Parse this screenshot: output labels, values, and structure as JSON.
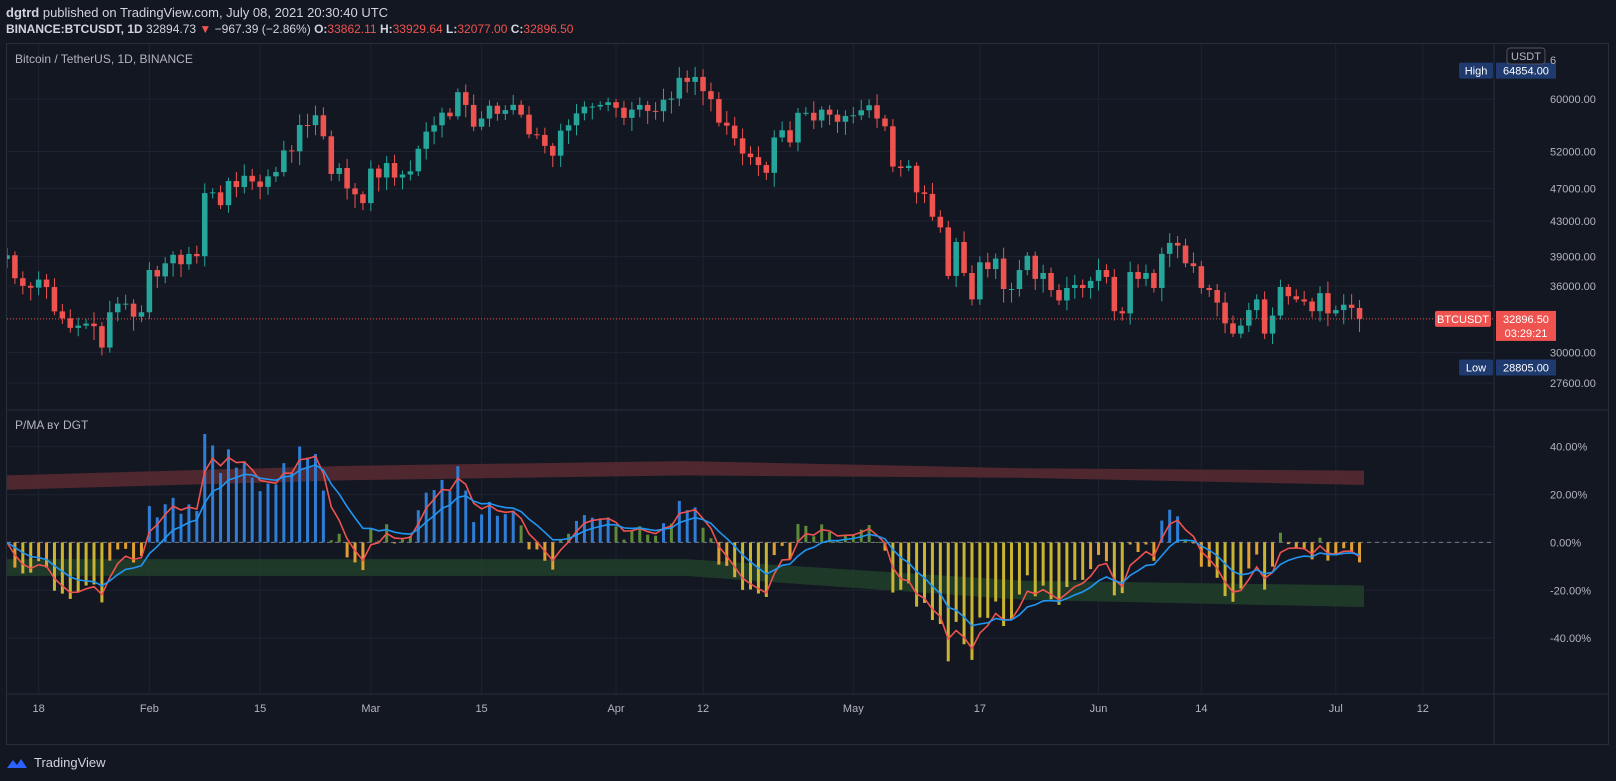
{
  "header": {
    "publisher": "dgtrd",
    "published_text": "published on TradingView.com, July 08, 2021 20:30:40 UTC",
    "symbol_line": "BINANCE:BTCUSDT, 1D",
    "last": "32894.73",
    "change_arrow": "▼",
    "change": "−967.39 (−2.86%)",
    "o_label": "O:",
    "o": "33862.11",
    "h_label": "H:",
    "h": "33929.64",
    "l_label": "L:",
    "l": "32077.00",
    "c_label": "C:",
    "c": "32896.50"
  },
  "colors": {
    "background": "#131722",
    "grid": "#1f2330",
    "up": "#26a69a",
    "down": "#ef5350",
    "ma_red": "#ef5350",
    "ma_blue": "#2196f3",
    "hist_blue": "#2f7dd4",
    "hist_green": "#5f8a3a",
    "hist_yellow": "#c9b531",
    "hist_orange": "#e0a030",
    "band_red": "#5a2a30",
    "band_green": "#22402a"
  },
  "footer": {
    "logo_icon": "tradingview-logo-icon",
    "brand": "TradingView"
  },
  "chart_data": [
    {
      "type": "candlestick",
      "title": "Bitcoin / TetherUS, 1D, BINANCE",
      "currency_badge": "USDT",
      "price_scale": "log",
      "y_ticks": [
        "60000.00",
        "52000.00",
        "47000.00",
        "43000.00",
        "39000.00",
        "36000.00",
        "30000.00",
        "27600.00"
      ],
      "y_top_partial_label": "6",
      "high_marker": {
        "label": "High",
        "value": "64854.00"
      },
      "low_marker": {
        "label": "Low",
        "value": "28805.00"
      },
      "last_price_marker": {
        "symbol": "BTCUSDT",
        "value": "32896.50",
        "countdown": "03:29:21"
      },
      "x_tick_labels": [
        "18",
        "Feb",
        "15",
        "Mar",
        "15",
        "Apr",
        "12",
        "May",
        "17",
        "Jun",
        "14",
        "Jul",
        "12"
      ],
      "x_ticks": [
        "2021-01-18",
        "2021-02-01",
        "2021-02-15",
        "2021-03-01",
        "2021-03-15",
        "2021-04-01",
        "2021-04-12",
        "2021-05-01",
        "2021-05-17",
        "2021-06-01",
        "2021-06-14",
        "2021-07-01",
        "2021-07-12"
      ],
      "x_range": [
        "2021-01-14",
        "2021-07-21"
      ],
      "close_series": {
        "start_date": "2021-01-14",
        "closes": [
          39150,
          36770,
          36010,
          35830,
          36630,
          35890,
          33580,
          32950,
          32100,
          32300,
          32480,
          32250,
          30420,
          33500,
          34300,
          34300,
          33100,
          33500,
          37600,
          36950,
          38300,
          39200,
          38200,
          39290,
          39050,
          46400,
          46500,
          44900,
          47960,
          47180,
          48650,
          47900,
          47200,
          48580,
          49150,
          52150,
          52020,
          55900,
          55880,
          57410,
          54200,
          48900,
          49700,
          47000,
          46250,
          45150,
          49620,
          48430,
          50380,
          48420,
          48820,
          49250,
          52380,
          54900,
          55860,
          57820,
          57250,
          61150,
          59050,
          55640,
          56900,
          58930,
          57630,
          58220,
          59070,
          57500,
          54500,
          54400,
          52800,
          51400,
          55050,
          55860,
          57700,
          58780,
          58800,
          59050,
          59500,
          58600,
          57000,
          58300,
          59050,
          58100,
          58050,
          59900,
          60100,
          63600,
          62900,
          63750,
          61320,
          60000,
          56260,
          55800,
          53900,
          51700,
          51200,
          50100,
          49050,
          54030,
          55100,
          53300,
          57800,
          57800,
          56600,
          58300,
          57500,
          56400,
          57300,
          57400,
          58200,
          59000,
          56900,
          55700,
          49900,
          49700,
          50000,
          46500,
          46300,
          43500,
          42250,
          37000,
          40600,
          37300,
          34700,
          38400,
          37700,
          38800,
          35700,
          35700,
          37600,
          39100,
          36700,
          37300,
          35600,
          34600,
          35800,
          36100,
          35800,
          36500,
          37600,
          36900,
          33600,
          33400,
          37400,
          36700,
          37300,
          35800,
          39300,
          40500,
          40200,
          38300,
          38000,
          35800,
          35600,
          34400,
          32500,
          31600,
          32300,
          33700,
          34700,
          31600,
          33200,
          35900,
          35000,
          34700,
          34500,
          33600,
          35300,
          33400,
          33700,
          34200,
          33900,
          32900
        ],
        "last_close": 32896.5
      }
    },
    {
      "type": "bar+line",
      "title": "P/MA ʙʏ DGT",
      "y_unit": "%",
      "y_ticks": [
        "40.00%",
        "20.00%",
        "0.00%",
        "-20.00%",
        "-40.00%"
      ],
      "ylim": [
        -60,
        52
      ],
      "series": [
        {
          "kind": "histogram",
          "description": "price to moving average deviation (%)"
        },
        {
          "kind": "line",
          "color_key": "ma_red"
        },
        {
          "kind": "line",
          "color_key": "ma_blue"
        },
        {
          "kind": "band",
          "color_key": "band_red",
          "values_low_high": [
            [
              22,
              28
            ],
            [
              26,
              32
            ],
            [
              28,
              34
            ],
            [
              27,
              31
            ],
            [
              24,
              30
            ]
          ]
        },
        {
          "kind": "band",
          "color_key": "band_green",
          "values_low_high": [
            [
              -14,
              -7
            ],
            [
              -14,
              -7
            ],
            [
              -14,
              -7
            ],
            [
              -24,
              -16
            ],
            [
              -27,
              -18
            ]
          ]
        }
      ]
    }
  ]
}
